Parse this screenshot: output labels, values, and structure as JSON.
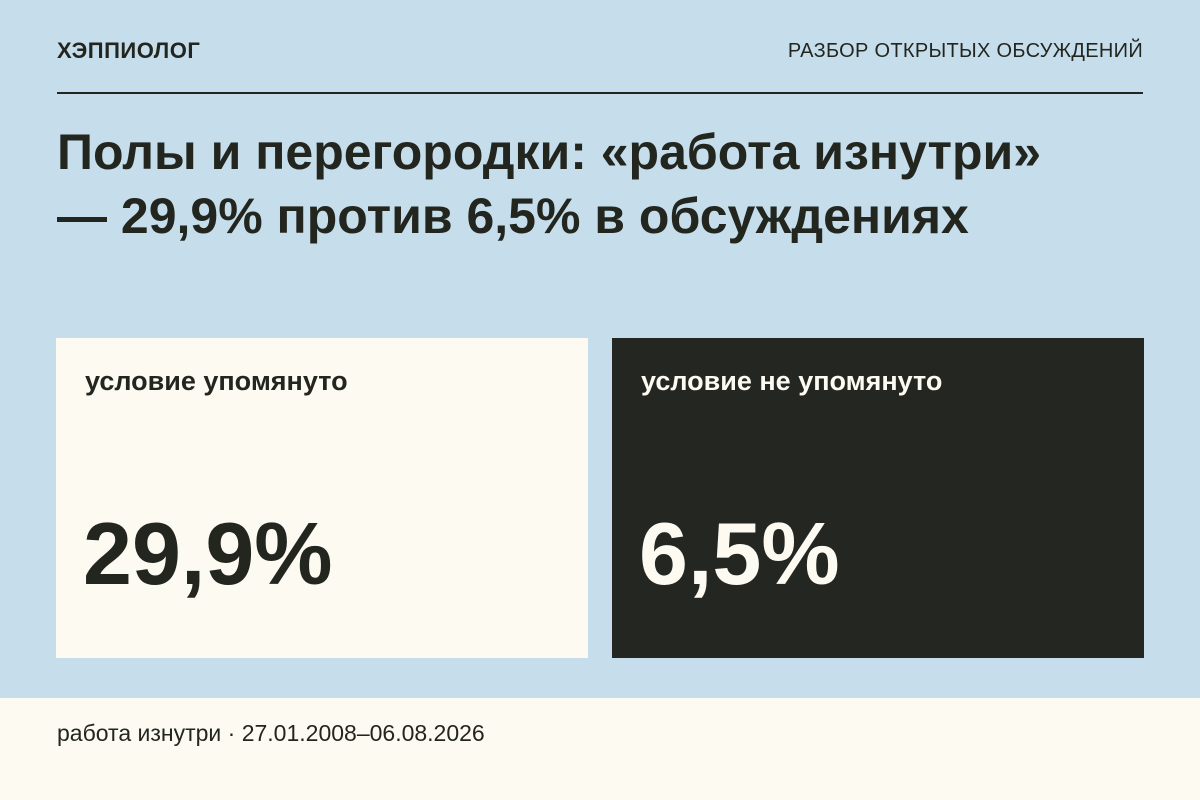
{
  "header": {
    "brand": "ХЭППИОЛОГ",
    "section": "РАЗБОР ОТКРЫТЫХ ОБСУЖДЕНИЙ"
  },
  "title": {
    "lines": [
      "Полы и перегородки: «работа изнутри»",
      "— 29,9% против 6,5% в обсуждениях"
    ]
  },
  "cards": [
    {
      "label": "условие упомянуто",
      "value": "29,9%"
    },
    {
      "label": "условие не упомянуто",
      "value": "6,5%"
    }
  ],
  "footer": {
    "text": "работа изнутри · 27.01.2008–06.08.2026"
  }
}
